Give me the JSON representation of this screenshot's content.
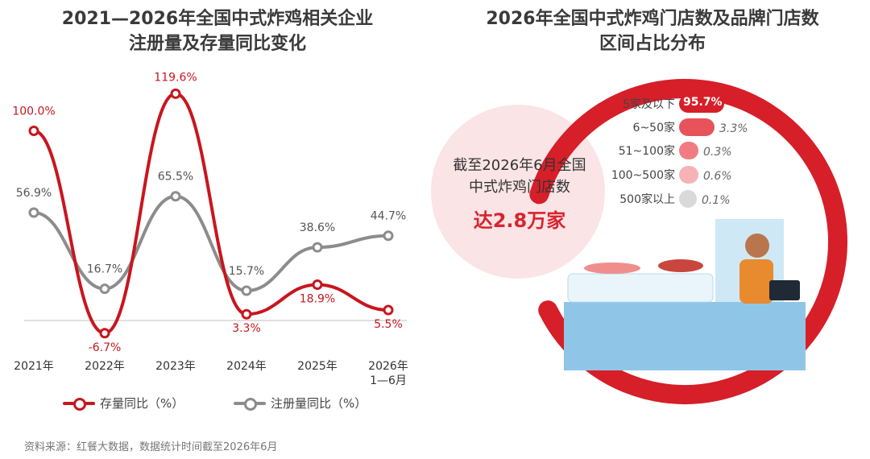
{
  "left_title": [
    "2021—2026年全国中式炸鸡相关企业",
    "注册量及存量同比变化"
  ],
  "right_title": [
    "2026年全国中式炸鸡门店数及品牌门店数",
    "区间占比分布"
  ],
  "source": "资料来源：红餐大数据，数据统计时间截至2026年6月",
  "colors": {
    "stock": "#c8161e",
    "registered": "#8c8c8c",
    "accent": "#d8252f"
  },
  "chart_data": [
    {
      "type": "line",
      "categories": [
        "2021年",
        "2022年",
        "2023年",
        "2024年",
        "2025年",
        "2026年\n1—6月"
      ],
      "series": [
        {
          "name": "存量同比（%）",
          "values": [
            100.0,
            -6.7,
            119.6,
            3.3,
            18.9,
            5.5
          ],
          "labels": [
            "100.0%",
            "-6.7%",
            "119.6%",
            "3.3%",
            "18.9%",
            "5.5%"
          ]
        },
        {
          "name": "注册量同比（%）",
          "values": [
            56.9,
            16.7,
            65.5,
            15.7,
            38.6,
            44.7
          ],
          "labels": [
            "56.9%",
            "16.7%",
            "65.5%",
            "15.7%",
            "38.6%",
            "44.7%"
          ]
        }
      ],
      "legend": "bottom"
    },
    {
      "type": "pie",
      "center_text": [
        "截至2026年6月全国",
        "中式炸鸡门店数"
      ],
      "center_value": "达2.8万家",
      "categories": [
        "5家及以下",
        "6~50家",
        "51~100家",
        "100~500家",
        "500家以上"
      ],
      "values": [
        95.7,
        3.3,
        0.3,
        0.6,
        0.1
      ],
      "value_labels": [
        "95.7%",
        "3.3%",
        "0.3%",
        "0.6%",
        "0.1%"
      ]
    }
  ]
}
